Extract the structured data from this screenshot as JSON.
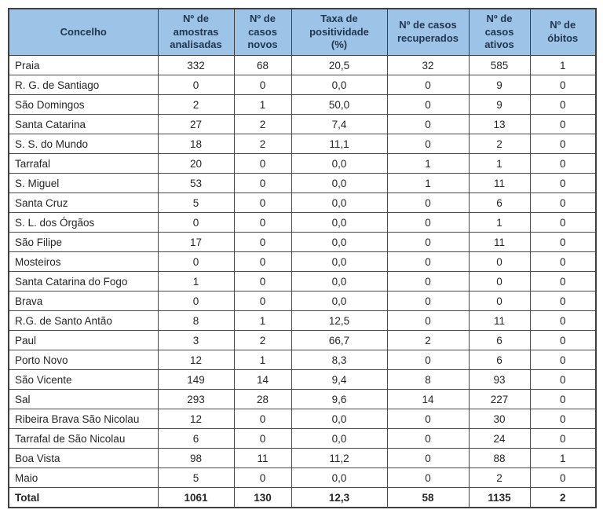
{
  "colors": {
    "header_bg": "#9DC3E6",
    "header_text": "#1F3550",
    "border": "#3f3f3f",
    "cell_text": "#262626",
    "page_bg": "#ffffff"
  },
  "table": {
    "columns": [
      "Concelho",
      "Nº de\namostras\nanalisadas",
      "Nº de\ncasos\nnovos",
      "Taxa de\npositividade\n(%)",
      "Nº de casos\nrecuperados",
      "Nº de\ncasos\nativos",
      "Nº de\nóbitos"
    ],
    "rows": [
      {
        "concelho": "Praia",
        "amostras": "332",
        "novos": "68",
        "taxa": "20,5",
        "recuperados": "32",
        "ativos": "585",
        "obitos": "1"
      },
      {
        "concelho": "R. G. de Santiago",
        "amostras": "0",
        "novos": "0",
        "taxa": "0,0",
        "recuperados": "0",
        "ativos": "9",
        "obitos": "0"
      },
      {
        "concelho": "São Domingos",
        "amostras": "2",
        "novos": "1",
        "taxa": "50,0",
        "recuperados": "0",
        "ativos": "9",
        "obitos": "0"
      },
      {
        "concelho": "Santa Catarina",
        "amostras": "27",
        "novos": "2",
        "taxa": "7,4",
        "recuperados": "0",
        "ativos": "13",
        "obitos": "0"
      },
      {
        "concelho": "S. S. do Mundo",
        "amostras": "18",
        "novos": "2",
        "taxa": "11,1",
        "recuperados": "0",
        "ativos": "2",
        "obitos": "0"
      },
      {
        "concelho": "Tarrafal",
        "amostras": "20",
        "novos": "0",
        "taxa": "0,0",
        "recuperados": "1",
        "ativos": "1",
        "obitos": "0"
      },
      {
        "concelho": "S. Miguel",
        "amostras": "53",
        "novos": "0",
        "taxa": "0,0",
        "recuperados": "1",
        "ativos": "11",
        "obitos": "0"
      },
      {
        "concelho": "Santa Cruz",
        "amostras": "5",
        "novos": "0",
        "taxa": "0,0",
        "recuperados": "0",
        "ativos": "6",
        "obitos": "0"
      },
      {
        "concelho": "S. L. dos Órgãos",
        "amostras": "0",
        "novos": "0",
        "taxa": "0,0",
        "recuperados": "0",
        "ativos": "1",
        "obitos": "0"
      },
      {
        "concelho": "São Filipe",
        "amostras": "17",
        "novos": "0",
        "taxa": "0,0",
        "recuperados": "0",
        "ativos": "11",
        "obitos": "0"
      },
      {
        "concelho": "Mosteiros",
        "amostras": "0",
        "novos": "0",
        "taxa": "0,0",
        "recuperados": "0",
        "ativos": "0",
        "obitos": "0"
      },
      {
        "concelho": "Santa Catarina do Fogo",
        "amostras": "1",
        "novos": "0",
        "taxa": "0,0",
        "recuperados": "0",
        "ativos": "0",
        "obitos": "0"
      },
      {
        "concelho": "Brava",
        "amostras": "0",
        "novos": "0",
        "taxa": "0,0",
        "recuperados": "0",
        "ativos": "0",
        "obitos": "0"
      },
      {
        "concelho": "R.G. de Santo Antão",
        "amostras": "8",
        "novos": "1",
        "taxa": "12,5",
        "recuperados": "0",
        "ativos": "11",
        "obitos": "0"
      },
      {
        "concelho": "Paul",
        "amostras": "3",
        "novos": "2",
        "taxa": "66,7",
        "recuperados": "2",
        "ativos": "6",
        "obitos": "0"
      },
      {
        "concelho": "Porto Novo",
        "amostras": "12",
        "novos": "1",
        "taxa": "8,3",
        "recuperados": "0",
        "ativos": "6",
        "obitos": "0"
      },
      {
        "concelho": "São Vicente",
        "amostras": "149",
        "novos": "14",
        "taxa": "9,4",
        "recuperados": "8",
        "ativos": "93",
        "obitos": "0"
      },
      {
        "concelho": "Sal",
        "amostras": "293",
        "novos": "28",
        "taxa": "9,6",
        "recuperados": "14",
        "ativos": "227",
        "obitos": "0"
      },
      {
        "concelho": "Ribeira Brava São Nicolau",
        "amostras": "12",
        "novos": "0",
        "taxa": "0,0",
        "recuperados": "0",
        "ativos": "30",
        "obitos": "0"
      },
      {
        "concelho": "Tarrafal de São Nicolau",
        "amostras": "6",
        "novos": "0",
        "taxa": "0,0",
        "recuperados": "0",
        "ativos": "24",
        "obitos": "0"
      },
      {
        "concelho": "Boa Vista",
        "amostras": "98",
        "novos": "11",
        "taxa": "11,2",
        "recuperados": "0",
        "ativos": "88",
        "obitos": "1"
      },
      {
        "concelho": "Maio",
        "amostras": "5",
        "novos": "0",
        "taxa": "0,0",
        "recuperados": "0",
        "ativos": "2",
        "obitos": "0"
      }
    ],
    "total_row": {
      "concelho": "Total",
      "amostras": "1061",
      "novos": "130",
      "taxa": "12,3",
      "recuperados": "58",
      "ativos": "1135",
      "obitos": "2"
    }
  }
}
